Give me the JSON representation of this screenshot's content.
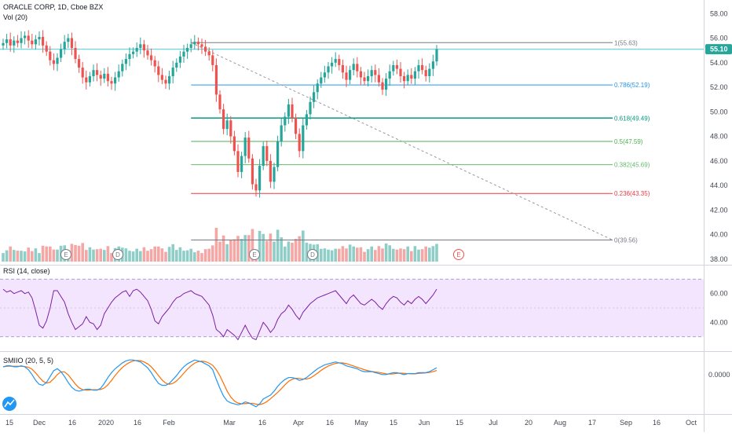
{
  "header": {
    "symbol_title": "ORACLE CORP, 1D, Cboe BZX",
    "volume_label": "Vol (20)",
    "rsi_label": "RSI (14, close)",
    "smi_label": "SMIIO (20, 5, 5)"
  },
  "price_axis": {
    "ticks": [
      "58.00",
      "56.00",
      "54.00",
      "52.00",
      "50.00",
      "48.00",
      "46.00",
      "44.00",
      "42.00",
      "40.00",
      "38.00"
    ],
    "last_price": "55.10",
    "range": [
      37.8,
      58.4
    ]
  },
  "rsi_axis": {
    "ticks": [
      "60.00",
      "40.00"
    ],
    "range": [
      20,
      80
    ],
    "band": [
      30,
      70
    ]
  },
  "smi_axis": {
    "ticks": [
      "0.0000"
    ]
  },
  "time_axis": {
    "labels": [
      "15",
      "Dec",
      "16",
      "2020",
      "16",
      "Feb",
      "Mar",
      "16",
      "Apr",
      "16",
      "May",
      "15",
      "Jun",
      "15",
      "Jul",
      "20",
      "Aug",
      "17",
      "Sep",
      "16",
      "Oct"
    ]
  },
  "fib_levels": [
    {
      "label": "1(55.63)",
      "value": 55.63,
      "color": "#787b86"
    },
    {
      "label": "0.786(52.19)",
      "value": 52.19,
      "color": "#2196f3"
    },
    {
      "label": "0.618(49.49)",
      "value": 49.49,
      "color": "#089981"
    },
    {
      "label": "0.5(47.59)",
      "value": 47.59,
      "color": "#4caf50"
    },
    {
      "label": "0.382(45.69)",
      "value": 45.69,
      "color": "#66bb6a"
    },
    {
      "label": "0.236(43.35)",
      "value": 43.35,
      "color": "#f23645"
    },
    {
      "label": "0(39.56)",
      "value": 39.56,
      "color": "#787b86"
    }
  ],
  "events": [
    "E",
    "D",
    "E",
    "D",
    "E"
  ],
  "colors": {
    "up": "#26a69a",
    "down": "#ef5350",
    "vol_up": "#8fcdc7",
    "vol_down": "#f4a7a5",
    "rsi_line": "#7b1fa2",
    "rsi_band": "#f3e5fd",
    "smi_line": "#2196f3",
    "smi_signal": "#ff6d00",
    "last_price_line": "#4dd0e1",
    "trend_line": "#9598a1"
  },
  "chart_data": {
    "type": "candlestick",
    "title": "ORACLE CORP, 1D, Cboe BZX",
    "y_range": [
      37.8,
      58.4
    ],
    "last_close": 55.1,
    "closes": [
      55.6,
      55.9,
      55.4,
      55.8,
      55.6,
      56.0,
      56.2,
      55.8,
      55.5,
      55.9,
      56.1,
      55.4,
      54.9,
      54.2,
      53.9,
      54.4,
      55.1,
      55.7,
      56.0,
      55.2,
      54.3,
      53.6,
      52.8,
      52.4,
      52.9,
      53.4,
      53.0,
      52.7,
      53.1,
      52.5,
      52.3,
      52.8,
      53.3,
      53.9,
      54.3,
      54.7,
      54.9,
      55.2,
      55.5,
      55.0,
      54.6,
      54.2,
      53.7,
      53.0,
      52.6,
      52.3,
      52.9,
      53.6,
      54.0,
      54.5,
      54.9,
      55.2,
      55.5,
      55.7,
      55.5,
      55.3,
      54.9,
      54.6,
      53.8,
      51.4,
      50.2,
      48.6,
      49.3,
      48.0,
      46.8,
      45.1,
      46.4,
      47.9,
      46.2,
      44.1,
      43.6,
      45.6,
      47.2,
      46.0,
      44.3,
      45.5,
      47.6,
      48.9,
      49.6,
      50.6,
      49.5,
      48.2,
      46.8,
      48.9,
      49.8,
      50.8,
      51.6,
      52.3,
      52.8,
      53.2,
      53.7,
      54.0,
      54.3,
      53.8,
      53.2,
      52.6,
      53.4,
      53.9,
      53.3,
      52.8,
      52.5,
      52.9,
      53.4,
      53.0,
      52.4,
      51.8,
      52.7,
      53.3,
      53.8,
      53.5,
      52.9,
      52.5,
      53.0,
      52.7,
      53.3,
      53.8,
      53.4,
      52.9,
      53.5,
      54.1,
      55.1
    ],
    "rsi": [
      63,
      61,
      62,
      60,
      61,
      62,
      60,
      61,
      57,
      48,
      38,
      36,
      41,
      50,
      62,
      62,
      58,
      54,
      46,
      40,
      35,
      37,
      39,
      44,
      40,
      39,
      35,
      38,
      46,
      50,
      54,
      57,
      59,
      61,
      62,
      58,
      62,
      63,
      61,
      58,
      55,
      49,
      41,
      39,
      44,
      47,
      50,
      54,
      57,
      58,
      60,
      61,
      62,
      60,
      59,
      58,
      55,
      52,
      45,
      35,
      33,
      30,
      35,
      33,
      31,
      28,
      33,
      38,
      33,
      29,
      28,
      34,
      40,
      37,
      33,
      36,
      42,
      46,
      48,
      52,
      49,
      45,
      42,
      47,
      50,
      53,
      55,
      57,
      58,
      59,
      60,
      61,
      62,
      59,
      56,
      53,
      57,
      59,
      56,
      53,
      52,
      54,
      56,
      54,
      51,
      49,
      53,
      56,
      58,
      57,
      54,
      52,
      55,
      53,
      56,
      58,
      56,
      53,
      56,
      59,
      63
    ],
    "smi": [
      8,
      9,
      9,
      8,
      8,
      9,
      8,
      5,
      0,
      -6,
      -10,
      -11,
      -8,
      -2,
      4,
      6,
      3,
      -2,
      -8,
      -13,
      -16,
      -17,
      -16,
      -15,
      -15,
      -16,
      -16,
      -14,
      -9,
      -3,
      2,
      6,
      9,
      12,
      14,
      15,
      15,
      14,
      13,
      10,
      7,
      2,
      -4,
      -9,
      -11,
      -11,
      -9,
      -5,
      -1,
      4,
      8,
      11,
      13,
      15,
      14,
      13,
      11,
      9,
      5,
      -5,
      -14,
      -22,
      -27,
      -29,
      -30,
      -31,
      -30,
      -28,
      -29,
      -31,
      -33,
      -30,
      -25,
      -23,
      -21,
      -17,
      -12,
      -8,
      -5,
      -3,
      -3,
      -4,
      -6,
      -5,
      -3,
      0,
      3,
      6,
      8,
      10,
      11,
      12,
      13,
      12,
      11,
      9,
      8,
      7,
      6,
      4,
      3,
      3,
      3,
      2,
      1,
      0,
      0,
      1,
      2,
      2,
      1,
      0,
      1,
      1,
      1,
      2,
      2,
      2,
      3,
      5,
      7
    ]
  }
}
